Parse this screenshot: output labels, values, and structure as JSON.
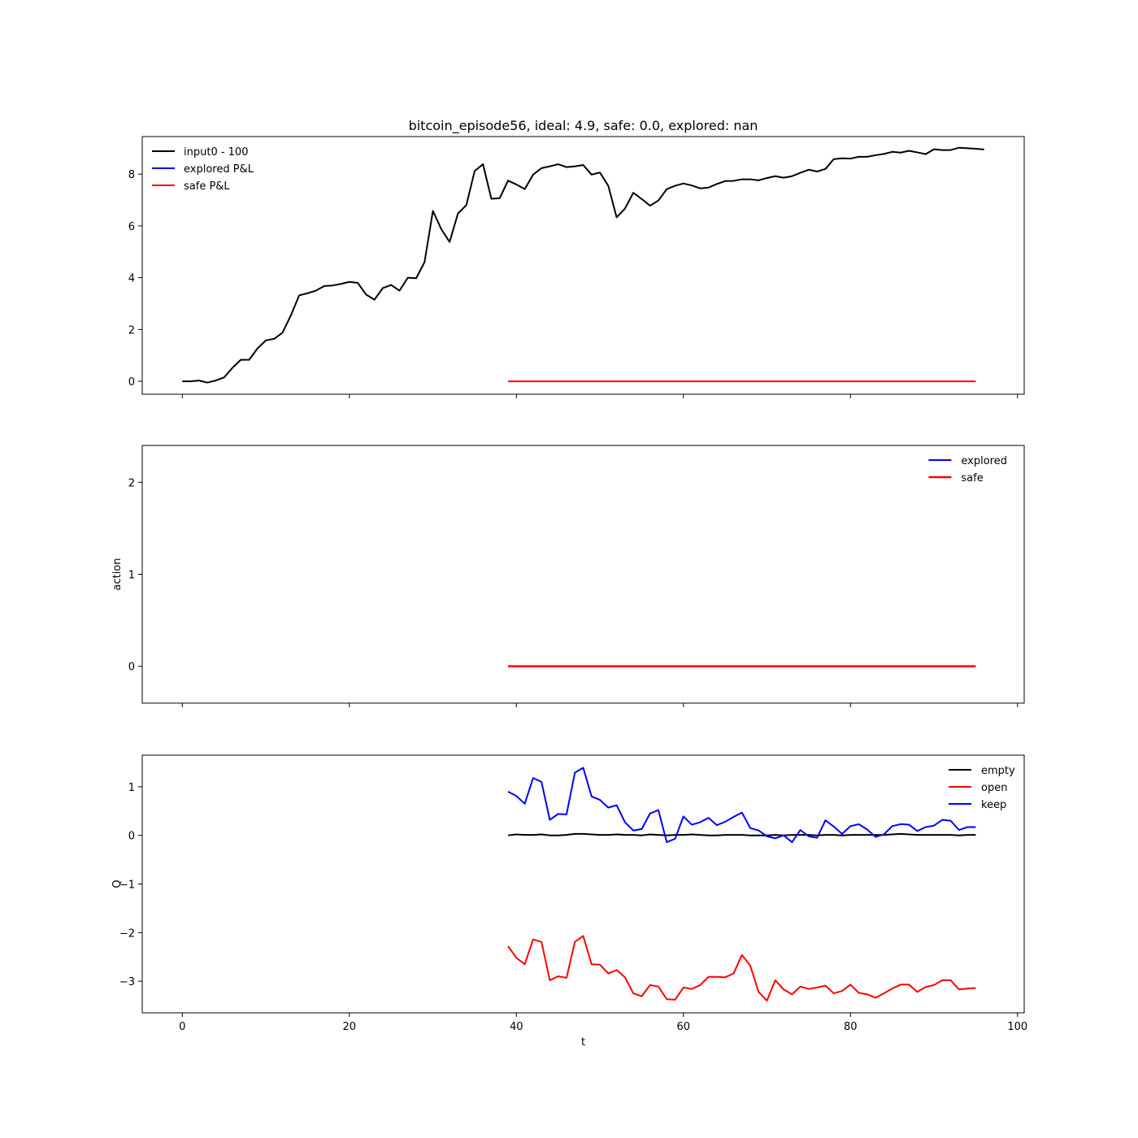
{
  "title": "bitcoin_episode56, ideal: 4.9, safe: 0.0, explored: nan",
  "chart_data": [
    {
      "type": "line",
      "title": "bitcoin_episode56, ideal: 4.9, safe: 0.0, explored: nan",
      "xlabel": "",
      "ylabel": "",
      "xlim": [
        -4.8,
        100.8
      ],
      "ylim": [
        -0.5,
        9.45
      ],
      "xticks": [
        0,
        20,
        40,
        60,
        80,
        100
      ],
      "yticks": [
        0,
        2,
        4,
        6,
        8
      ],
      "show_x_tick_labels": false,
      "grid": false,
      "legend": "top-left",
      "series": [
        {
          "name": "input0 - 100",
          "color": "#000000",
          "x_start": 0,
          "values": [
            0.0,
            0.0,
            0.03,
            -0.05,
            0.03,
            0.15,
            0.52,
            0.83,
            0.83,
            1.27,
            1.58,
            1.64,
            1.88,
            2.55,
            3.32,
            3.4,
            3.5,
            3.68,
            3.7,
            3.76,
            3.84,
            3.8,
            3.35,
            3.15,
            3.6,
            3.72,
            3.5,
            4.0,
            3.98,
            4.6,
            6.58,
            5.88,
            5.38,
            6.48,
            6.8,
            8.12,
            8.38,
            7.05,
            7.07,
            7.75,
            7.6,
            7.42,
            7.98,
            8.23,
            8.3,
            8.38,
            8.27,
            8.3,
            8.35,
            7.98,
            8.06,
            7.55,
            6.33,
            6.67,
            7.28,
            7.04,
            6.78,
            6.98,
            7.42,
            7.55,
            7.64,
            7.56,
            7.45,
            7.48,
            7.62,
            7.73,
            7.74,
            7.8,
            7.8,
            7.76,
            7.85,
            7.92,
            7.86,
            7.92,
            8.05,
            8.17,
            8.1,
            8.2,
            8.58,
            8.61,
            8.6,
            8.67,
            8.67,
            8.73,
            8.78,
            8.86,
            8.83,
            8.9,
            8.84,
            8.77,
            8.96,
            8.93,
            8.93,
            9.02,
            9.0,
            8.98,
            8.95
          ]
        },
        {
          "name": "explored P&L",
          "color": "#0000ff",
          "x_start": 39,
          "values": []
        },
        {
          "name": "safe P&L",
          "color": "#ff0000",
          "x_start": 39,
          "x_end": 95,
          "constant": 0
        }
      ]
    },
    {
      "type": "line",
      "title": "",
      "xlabel": "",
      "ylabel": "action",
      "xlim": [
        -4.8,
        100.8
      ],
      "ylim": [
        -0.4,
        2.4
      ],
      "xticks": [
        0,
        20,
        40,
        60,
        80,
        100
      ],
      "yticks": [
        0,
        1,
        2
      ],
      "show_x_tick_labels": false,
      "grid": false,
      "legend": "top-right",
      "series": [
        {
          "name": "explored",
          "color": "#0000ff",
          "x_start": 39,
          "values": []
        },
        {
          "name": "safe",
          "color": "#ff0000",
          "x_start": 39,
          "x_end": 95,
          "constant": 0
        }
      ]
    },
    {
      "type": "line",
      "title": "",
      "xlabel": "t",
      "ylabel": "Q",
      "xlim": [
        -4.8,
        100.8
      ],
      "ylim": [
        -3.65,
        1.65
      ],
      "xticks": [
        0,
        20,
        40,
        60,
        80,
        100
      ],
      "yticks": [
        -3,
        -2,
        -1,
        0,
        1
      ],
      "show_x_tick_labels": true,
      "grid": false,
      "legend": "top-right",
      "series": [
        {
          "name": "empty",
          "color": "#000000",
          "x_start": 39,
          "values": [
            0.0,
            0.02,
            0.01,
            0.01,
            0.02,
            0.0,
            0.0,
            0.01,
            0.03,
            0.03,
            0.02,
            0.01,
            0.01,
            0.02,
            0.01,
            0.01,
            0.0,
            0.02,
            0.01,
            0.0,
            0.01,
            0.01,
            0.02,
            0.01,
            0.0,
            0.0,
            0.01,
            0.01,
            0.01,
            0.0,
            0.0,
            0.0,
            0.01,
            0.0,
            0.01,
            0.01,
            0.01,
            0.0,
            0.01,
            0.01,
            0.0,
            0.01,
            0.01,
            0.01,
            0.01,
            0.01,
            0.02,
            0.03,
            0.02,
            0.01,
            0.01,
            0.01,
            0.01,
            0.01,
            0.0,
            0.01,
            0.01
          ]
        },
        {
          "name": "open",
          "color": "#ff0000",
          "x_start": 39,
          "values": [
            -2.28,
            -2.52,
            -2.65,
            -2.14,
            -2.19,
            -2.98,
            -2.9,
            -2.93,
            -2.19,
            -2.07,
            -2.65,
            -2.66,
            -2.84,
            -2.77,
            -2.92,
            -3.25,
            -3.31,
            -3.08,
            -3.11,
            -3.37,
            -3.38,
            -3.13,
            -3.16,
            -3.08,
            -2.91,
            -2.91,
            -2.92,
            -2.84,
            -2.46,
            -2.68,
            -3.22,
            -3.4,
            -2.98,
            -3.17,
            -3.27,
            -3.11,
            -3.16,
            -3.13,
            -3.09,
            -3.25,
            -3.2,
            -3.07,
            -3.24,
            -3.27,
            -3.34,
            -3.25,
            -3.15,
            -3.07,
            -3.07,
            -3.22,
            -3.12,
            -3.08,
            -2.98,
            -2.98,
            -3.17,
            -3.15,
            -3.14
          ]
        },
        {
          "name": "keep",
          "color": "#0000ff",
          "x_start": 39,
          "values": [
            0.9,
            0.81,
            0.65,
            1.18,
            1.1,
            0.32,
            0.44,
            0.43,
            1.29,
            1.39,
            0.8,
            0.73,
            0.57,
            0.62,
            0.27,
            0.1,
            0.13,
            0.45,
            0.52,
            -0.14,
            -0.07,
            0.39,
            0.22,
            0.27,
            0.36,
            0.21,
            0.28,
            0.38,
            0.47,
            0.15,
            0.1,
            -0.02,
            -0.06,
            0.0,
            -0.14,
            0.11,
            -0.02,
            -0.05,
            0.31,
            0.18,
            0.03,
            0.19,
            0.23,
            0.12,
            -0.03,
            0.02,
            0.19,
            0.23,
            0.22,
            0.09,
            0.17,
            0.2,
            0.32,
            0.3,
            0.11,
            0.17,
            0.17
          ]
        }
      ]
    }
  ]
}
